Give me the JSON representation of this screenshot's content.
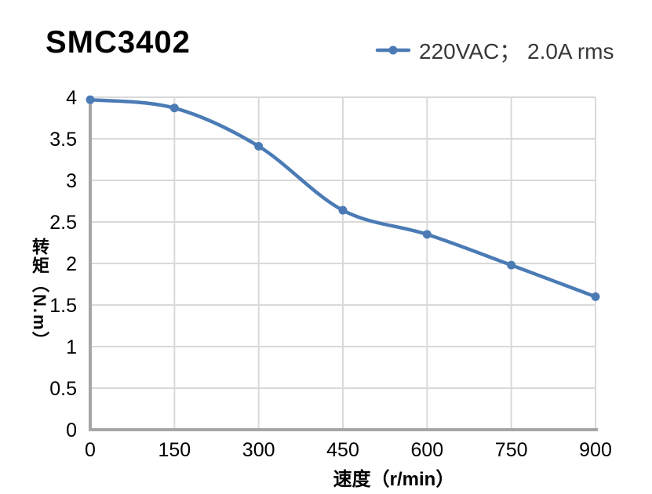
{
  "chart_data": {
    "type": "line",
    "title": "SMC3402",
    "xlabel": "速度（r/min）",
    "ylabel": "转矩（N.m）",
    "xlim": [
      0,
      900
    ],
    "ylim": [
      0,
      4
    ],
    "x_ticks": [
      0,
      150,
      300,
      450,
      600,
      750,
      900
    ],
    "y_ticks": [
      0,
      0.5,
      1,
      1.5,
      2,
      2.5,
      3,
      3.5,
      4
    ],
    "grid": true,
    "legend_position": "top-right",
    "smooth": true,
    "series": [
      {
        "name": "220VAC； 2.0A rms",
        "x": [
          0,
          150,
          300,
          450,
          600,
          750,
          900
        ],
        "values": [
          3.97,
          3.87,
          3.41,
          2.64,
          2.35,
          1.98,
          1.6
        ]
      }
    ],
    "colors": {
      "line": "#4b7bb5",
      "marker": "#4b7bb5",
      "grid": "#d9d9d9",
      "axis": "#a6a6a6",
      "tick_text": "#000000",
      "legend_text": "#383838",
      "title_text": "#000000"
    }
  }
}
